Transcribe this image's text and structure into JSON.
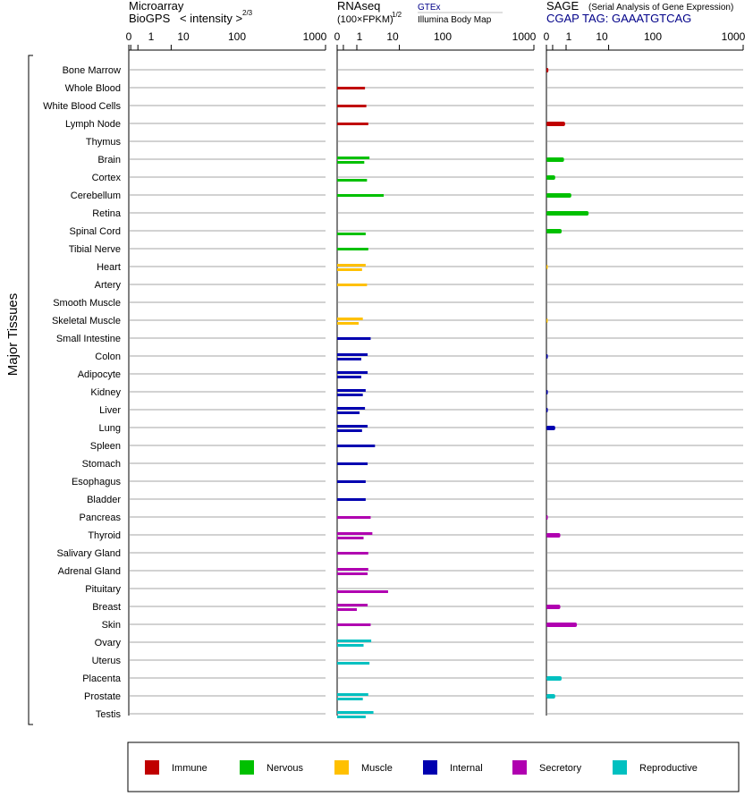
{
  "headers": {
    "microarray_line1": "Microarray",
    "microarray_line2": "BioGPS",
    "microarray_intensity": "< intensity >",
    "microarray_exponent": "2/3",
    "rnaseq_line1": "RNAseq",
    "rnaseq_line2": "(100×FPKM)",
    "rnaseq_exponent": "1/2",
    "gtex_label": "GTEx",
    "illumina_label": "Illumina Body Map",
    "sage_label": "SAGE",
    "sage_desc": "(Serial Analysis of Gene Expression)",
    "cgap_tag": "CGAP TAG: GAAATGTCAG"
  },
  "y_axis_label": "Major Tissues",
  "legend": [
    {
      "label": "Immune",
      "color": "#c00000"
    },
    {
      "label": "Nervous",
      "color": "#00c000"
    },
    {
      "label": "Muscle",
      "color": "#ffc000"
    },
    {
      "label": "Internal",
      "color": "#0000b0"
    },
    {
      "label": "Secretory",
      "color": "#b000b0"
    },
    {
      "label": "Reproductive",
      "color": "#00c0c0"
    }
  ],
  "chart_data": {
    "type": "bar",
    "x_scale": "power 2/3 (intensity) / power 1/2 (FPKM)",
    "x_ticks": [
      "0",
      "1",
      "10",
      "100",
      "1000"
    ],
    "xlim": [
      0,
      1000
    ],
    "categories": [
      "Bone Marrow",
      "Whole Blood",
      "White Blood Cells",
      "Lymph Node",
      "Thymus",
      "Brain",
      "Cortex",
      "Cerebellum",
      "Retina",
      "Spinal Cord",
      "Tibial Nerve",
      "Heart",
      "Artery",
      "Smooth Muscle",
      "Skeletal Muscle",
      "Small Intestine",
      "Colon",
      "Adipocyte",
      "Kidney",
      "Liver",
      "Lung",
      "Spleen",
      "Stomach",
      "Esophagus",
      "Bladder",
      "Pancreas",
      "Thyroid",
      "Salivary Gland",
      "Adrenal Gland",
      "Pituitary",
      "Breast",
      "Skin",
      "Ovary",
      "Uterus",
      "Placenta",
      "Prostate",
      "Testis"
    ],
    "category_system": [
      "Immune",
      "Immune",
      "Immune",
      "Immune",
      "Immune",
      "Nervous",
      "Nervous",
      "Nervous",
      "Nervous",
      "Nervous",
      "Nervous",
      "Muscle",
      "Muscle",
      "Muscle",
      "Muscle",
      "Internal",
      "Internal",
      "Internal",
      "Internal",
      "Internal",
      "Internal",
      "Internal",
      "Internal",
      "Internal",
      "Internal",
      "Secretory",
      "Secretory",
      "Secretory",
      "Secretory",
      "Secretory",
      "Secretory",
      "Secretory",
      "Reproductive",
      "Reproductive",
      "Reproductive",
      "Reproductive",
      "Reproductive"
    ],
    "series": [
      {
        "name": "Microarray",
        "values": [
          0,
          0,
          0,
          0,
          0,
          0,
          0,
          0,
          0,
          0,
          0,
          0,
          0,
          0,
          0,
          0,
          0,
          0,
          0,
          0,
          0,
          0,
          0,
          0,
          0,
          0,
          0,
          0,
          0,
          0,
          0,
          0,
          0,
          0,
          0,
          0,
          0
        ]
      },
      {
        "name": "GTEx",
        "values": [
          null,
          20,
          22,
          25,
          null,
          27,
          null,
          56,
          null,
          null,
          25,
          21,
          23,
          null,
          17,
          29,
          24,
          24,
          21,
          20,
          24,
          37,
          24,
          21,
          21,
          29,
          32,
          25,
          25,
          null,
          24,
          29,
          30,
          null,
          null,
          25,
          34
        ]
      },
      {
        "name": "Illumina Body Map",
        "values": [
          null,
          null,
          null,
          null,
          null,
          19,
          23,
          null,
          null,
          21,
          null,
          16,
          null,
          null,
          12,
          null,
          15,
          15,
          17,
          13,
          16,
          null,
          null,
          null,
          null,
          null,
          18,
          null,
          24,
          67,
          10,
          null,
          18,
          27,
          null,
          17,
          21
        ]
      },
      {
        "name": "SAGE",
        "values": [
          0.1,
          0,
          0,
          9,
          0,
          8,
          2,
          16,
          46,
          6,
          0,
          0.01,
          0,
          0,
          0.01,
          0,
          0.05,
          0,
          0.05,
          0.05,
          2,
          0,
          0,
          0,
          0,
          0.05,
          5,
          0,
          0,
          0,
          5,
          24,
          0,
          0,
          6,
          2,
          0
        ]
      }
    ]
  }
}
